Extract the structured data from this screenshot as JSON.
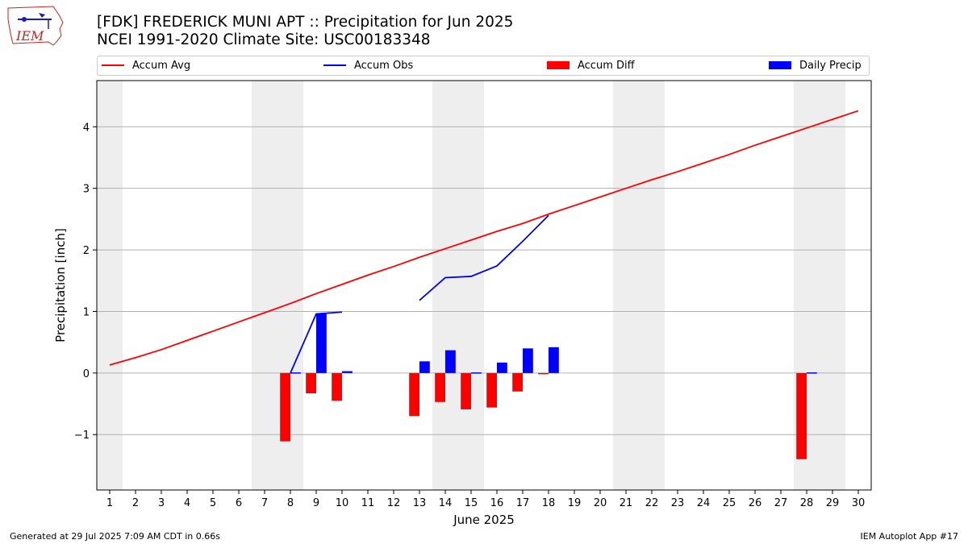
{
  "header": {
    "logo_text": "IEM",
    "title_line1": "[FDK] FREDERICK MUNI APT :: Precipitation for Jun 2025",
    "title_line2": "NCEI 1991-2020 Climate Site: USC00183348"
  },
  "legend": {
    "items": [
      {
        "label": "Accum Avg",
        "kind": "line",
        "color": "#ff0000"
      },
      {
        "label": "Accum Obs",
        "kind": "line",
        "color": "#0000ff"
      },
      {
        "label": "Accum Diff",
        "kind": "bar",
        "color": "#ff0000"
      },
      {
        "label": "Daily Precip",
        "kind": "bar",
        "color": "#0000ff"
      }
    ]
  },
  "footer": {
    "left": "Generated at 29 Jul 2025 7:09 AM CDT in 0.66s",
    "right": "IEM Autoplot App #17"
  },
  "chart_data": {
    "type": "bar",
    "xlabel": "June 2025",
    "ylabel": "Precipitation [inch]",
    "xlim": [
      0.5,
      30.5
    ],
    "ylim": [
      -1.9,
      4.75
    ],
    "yticks": [
      -1,
      0,
      1,
      2,
      3,
      4
    ],
    "ytick_labels": [
      "−1",
      "0",
      "1",
      "2",
      "3",
      "4"
    ],
    "xticks": [
      1,
      2,
      3,
      4,
      5,
      6,
      7,
      8,
      9,
      10,
      11,
      12,
      13,
      14,
      15,
      16,
      17,
      18,
      19,
      20,
      21,
      22,
      23,
      24,
      25,
      26,
      27,
      28,
      29,
      30
    ],
    "grid": "horizontal",
    "weekend_shading": [
      [
        0.5,
        1.5
      ],
      [
        6.5,
        8.5
      ],
      [
        13.5,
        15.5
      ],
      [
        20.5,
        22.5
      ],
      [
        27.5,
        29.5
      ]
    ],
    "series": [
      {
        "name": "Accum Avg",
        "type": "line",
        "color": "#ff0000",
        "x": [
          1,
          2,
          3,
          4,
          5,
          6,
          7,
          8,
          9,
          10,
          11,
          12,
          13,
          14,
          15,
          16,
          17,
          18,
          19,
          20,
          21,
          22,
          23,
          24,
          25,
          26,
          27,
          28,
          29,
          30
        ],
        "values": [
          0.13,
          0.25,
          0.38,
          0.53,
          0.68,
          0.83,
          0.98,
          1.13,
          1.29,
          1.44,
          1.59,
          1.73,
          1.88,
          2.02,
          2.16,
          2.3,
          2.43,
          2.58,
          2.72,
          2.86,
          3.0,
          3.14,
          3.27,
          3.41,
          3.55,
          3.7,
          3.84,
          3.98,
          4.12,
          4.26
        ]
      },
      {
        "name": "Accum Obs",
        "type": "line",
        "color": "#0000ff",
        "segments": [
          {
            "x": [
              8,
              9,
              10
            ],
            "values": [
              0.0,
              0.96,
              0.99
            ]
          },
          {
            "x": [
              13,
              14,
              15,
              16,
              17,
              18
            ],
            "values": [
              1.18,
              1.55,
              1.57,
              1.74,
              2.14,
              2.56
            ]
          }
        ]
      },
      {
        "name": "Accum Diff",
        "type": "bar",
        "color": "#ff0000",
        "x": [
          8,
          9,
          10,
          13,
          14,
          15,
          16,
          17,
          18,
          28
        ],
        "values": [
          -1.11,
          -0.33,
          -0.45,
          -0.7,
          -0.47,
          -0.59,
          -0.56,
          -0.3,
          -0.02,
          -1.4
        ]
      },
      {
        "name": "Daily Precip",
        "type": "bar",
        "color": "#0000ff",
        "x": [
          8,
          9,
          10,
          13,
          14,
          15,
          16,
          17,
          18,
          28
        ],
        "values": [
          0.01,
          0.96,
          0.03,
          0.19,
          0.37,
          0.01,
          0.17,
          0.4,
          0.42,
          0.01
        ]
      }
    ]
  }
}
